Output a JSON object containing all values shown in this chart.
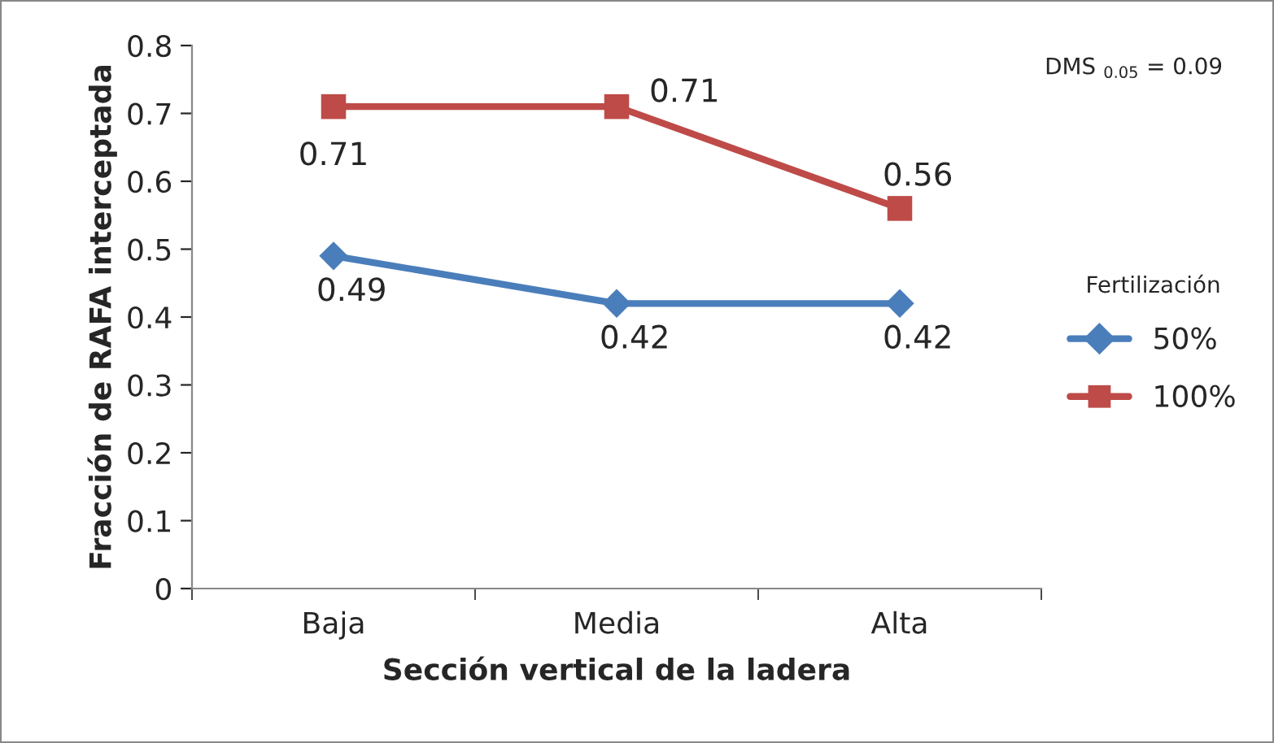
{
  "chart_data": {
    "type": "line",
    "xlabel": "Sección vertical de la ladera",
    "ylabel": "Fracción de RAFA interceptada",
    "categories": [
      "Baja",
      "Media",
      "Alta"
    ],
    "series": [
      {
        "name": "50%",
        "color": "#4a7ebb",
        "marker": "diamond",
        "values": [
          0.49,
          0.42,
          0.42
        ]
      },
      {
        "name": "100%",
        "color": "#be4b48",
        "marker": "square",
        "values": [
          0.71,
          0.71,
          0.56
        ]
      }
    ],
    "ylim": [
      0,
      0.8
    ],
    "yticks": [
      0,
      0.1,
      0.2,
      0.3,
      0.4,
      0.5,
      0.6,
      0.7,
      0.8
    ],
    "data_labels": true,
    "legend": "right",
    "legend_title": "Fertilización",
    "grid": false,
    "annotations": [
      "DMS $_{0.05}$ = 0.09"
    ]
  }
}
